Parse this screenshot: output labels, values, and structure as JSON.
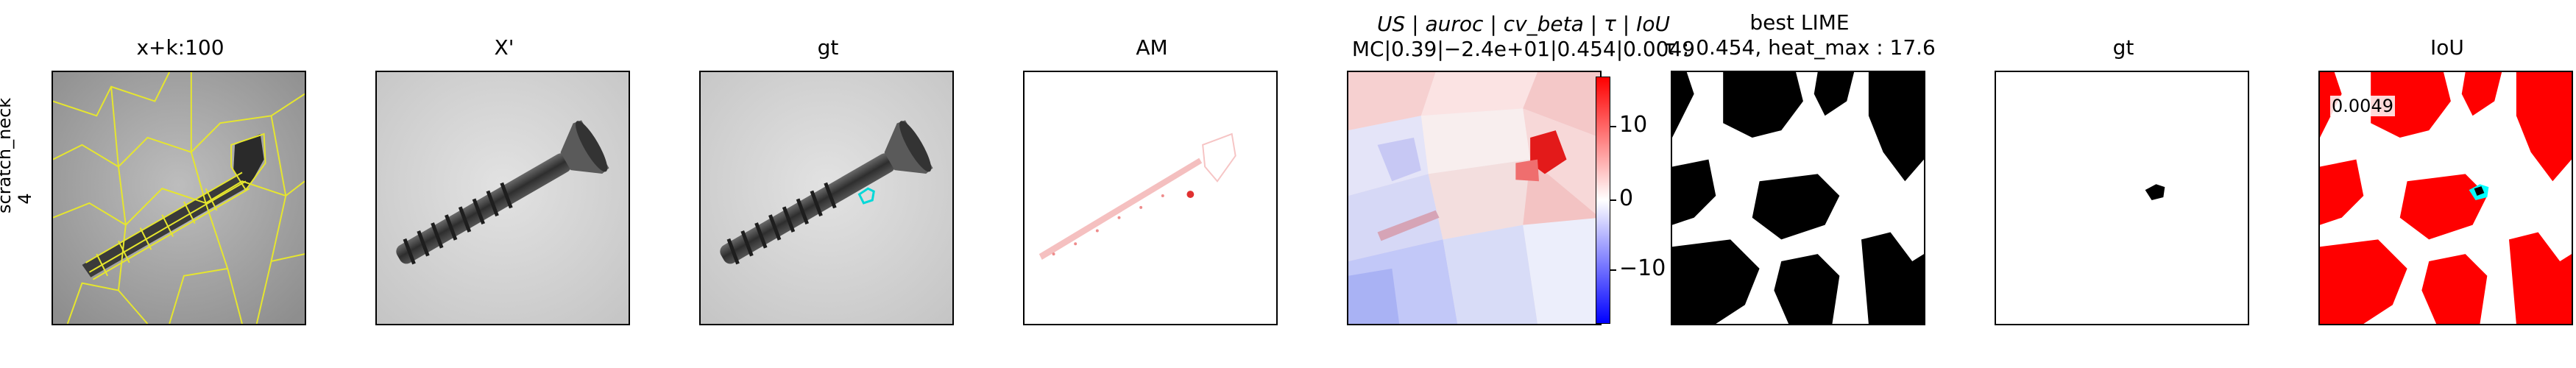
{
  "row_label": "scratch_neck\n4",
  "panels": [
    {
      "title": "x+k:100"
    },
    {
      "title": "X'"
    },
    {
      "title": "gt"
    },
    {
      "title": "AM"
    },
    {
      "title_line1": "US | auroc | cv_beta | τ | IoU",
      "title_line2": "MC|0.39|−2.4e+01|0.454|0.0049"
    },
    {
      "title_line1": "best LIME",
      "title_line2": "τ : 0.454, heat_max : 17.6"
    },
    {
      "title": "gt"
    },
    {
      "title": "IoU",
      "value": "0.0049"
    }
  ],
  "colorbar": {
    "ticks": [
      "10",
      "0",
      "−10"
    ],
    "colors": {
      "high": "#ff0000",
      "mid": "#ffffff",
      "low": "#0000ff"
    }
  },
  "colors": {
    "contour": "#e6e62e",
    "gt_outline": "#00d8d8",
    "mask": "#000000",
    "iou_fill": "#ff0000",
    "iou_gt": "#00ffff"
  }
}
